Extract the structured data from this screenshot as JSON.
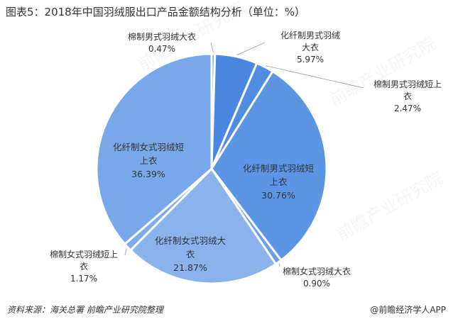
{
  "title": "图表5：2018年中国羽绒服出口产品金额结构分析（单位：%）",
  "source": "资料来源：海关总署 前瞻产业研究院整理",
  "brand": "@前瞻经济学人APP",
  "watermark": "前瞻产业研究院",
  "chart_data": {
    "type": "pie",
    "slices": [
      {
        "label_lines": [
          "棉制男式羽绒大衣"
        ],
        "value_text": "0.47%",
        "value": 0.47,
        "color": "#7ea9e8"
      },
      {
        "label_lines": [
          "化纤制男式羽绒",
          "大衣"
        ],
        "value_text": "5.97%",
        "value": 5.97,
        "color": "#4a88e0"
      },
      {
        "label_lines": [
          "棉制男式羽绒短上",
          "衣"
        ],
        "value_text": "2.47%",
        "value": 2.47,
        "color": "#4f8ce2"
      },
      {
        "label_lines": [
          "化纤制男式羽绒短",
          "上衣"
        ],
        "value_text": "30.76%",
        "value": 30.76,
        "color": "#5b95e4"
      },
      {
        "label_lines": [
          "棉制女式羽绒大衣"
        ],
        "value_text": "0.90%",
        "value": 0.9,
        "color": "#6a9fe6"
      },
      {
        "label_lines": [
          "化纤制女式羽绒大",
          "衣"
        ],
        "value_text": "21.87%",
        "value": 21.87,
        "color": "#8ab3eb"
      },
      {
        "label_lines": [
          "棉制女式羽绒短上",
          "衣"
        ],
        "value_text": "1.17%",
        "value": 1.17,
        "color": "#7fabe9"
      },
      {
        "label_lines": [
          "化纤制女式羽绒短",
          "上衣"
        ],
        "value_text": "36.39%",
        "value": 36.39,
        "color": "#79a8ea"
      }
    ]
  }
}
